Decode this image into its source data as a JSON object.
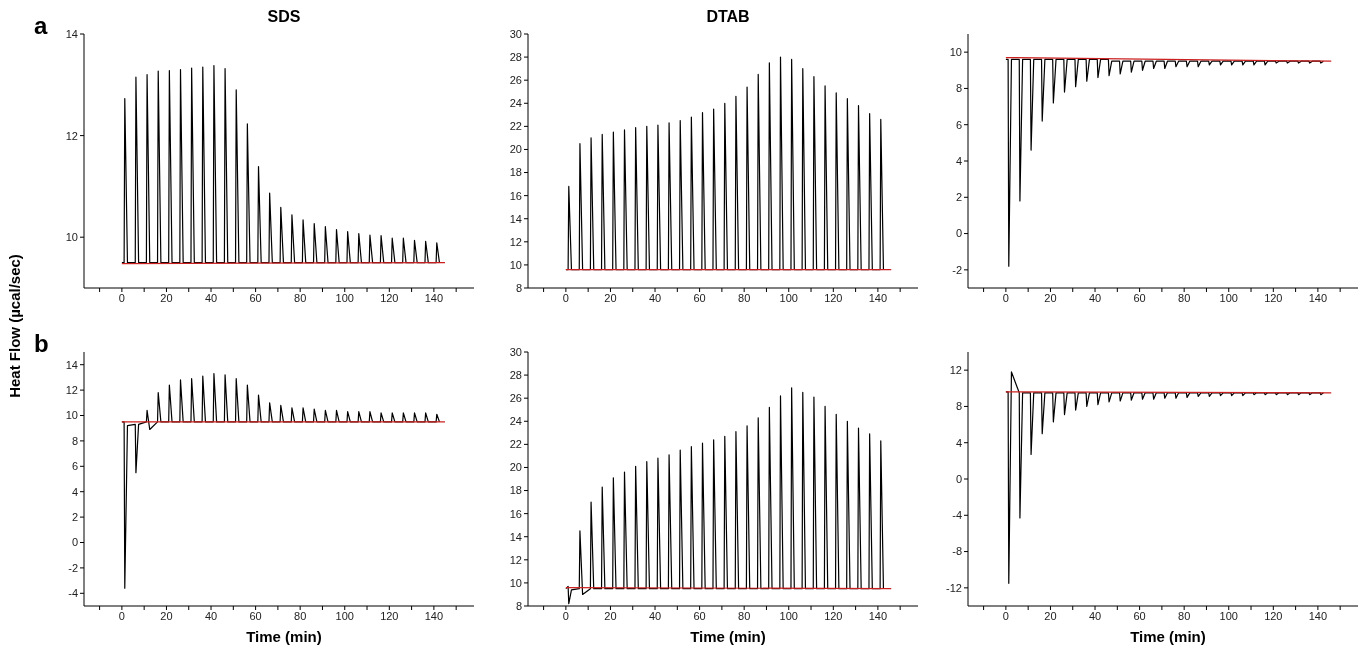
{
  "chart_data": [
    {
      "type": "line",
      "title": "SDS",
      "ylabel": "Heat Flow (µcal/sec)",
      "annotations": [
        "a"
      ],
      "xlim": [
        -17,
        158
      ],
      "xticks": [
        {
          "value": -10,
          "label": null
        },
        0,
        {
          "value": 10,
          "label": null
        },
        20,
        {
          "value": 30,
          "label": null
        },
        40,
        {
          "value": 50,
          "label": null
        },
        60,
        {
          "value": 70,
          "label": null
        },
        80,
        {
          "value": 90,
          "label": null
        },
        100,
        {
          "value": 110,
          "label": null
        },
        120,
        {
          "value": 130,
          "label": null
        },
        140,
        {
          "value": 150,
          "label": null
        }
      ],
      "ylim": [
        9,
        14
      ],
      "yticks": [
        10,
        12,
        14
      ],
      "x": [
        0,
        1,
        1.3,
        2.5,
        6,
        6.3,
        7.5,
        11,
        11.3,
        12.5,
        16,
        16.3,
        17.5,
        21,
        21.3,
        22.5,
        26,
        26.3,
        27.5,
        31,
        31.3,
        32.5,
        36,
        36.3,
        37.5,
        41,
        41.3,
        42.5,
        46,
        46.3,
        47.5,
        51,
        51.3,
        52.5,
        56,
        56.3,
        57.5,
        61,
        61.3,
        62.5,
        66,
        66.3,
        67.5,
        71,
        71.3,
        72.5,
        76,
        76.3,
        77.5,
        81,
        81.3,
        82.5,
        86,
        86.3,
        87.5,
        91,
        91.3,
        92.5,
        96,
        96.3,
        97.5,
        101,
        101.3,
        102.5,
        106,
        106.3,
        107.5,
        111,
        111.3,
        112.5,
        116,
        116.3,
        117.5,
        121,
        121.3,
        122.5,
        126,
        126.3,
        127.5,
        131,
        131.3,
        132.5,
        136,
        136.3,
        137.5,
        141,
        141.3,
        142.5
      ],
      "series": [
        {
          "color": "#000000",
          "values": [
            9.5,
            9.5,
            12.73,
            9.5,
            9.5,
            13.15,
            9.5,
            9.5,
            13.2,
            9.5,
            9.5,
            13.27,
            9.5,
            9.5,
            13.28,
            9.5,
            9.5,
            13.3,
            9.5,
            9.5,
            13.33,
            9.5,
            9.5,
            13.35,
            9.5,
            9.5,
            13.38,
            9.5,
            9.5,
            13.32,
            9.5,
            9.5,
            12.9,
            9.5,
            9.5,
            12.23,
            9.5,
            9.5,
            11.39,
            9.5,
            9.5,
            10.87,
            9.5,
            9.5,
            10.59,
            9.5,
            9.5,
            10.44,
            9.5,
            9.5,
            10.34,
            9.5,
            9.5,
            10.27,
            9.5,
            9.5,
            10.21,
            9.5,
            9.5,
            10.15,
            9.5,
            9.5,
            10.11,
            9.5,
            9.5,
            10.07,
            9.5,
            9.5,
            10.04,
            9.5,
            9.5,
            10.03,
            9.5,
            9.5,
            9.98,
            9.5,
            9.5,
            9.98,
            9.5,
            9.5,
            9.94,
            9.5,
            9.5,
            9.92,
            9.5,
            9.5,
            9.89,
            9.5
          ]
        },
        {
          "color": "#cc1f1f",
          "x": [
            0,
            145
          ],
          "values": [
            9.48,
            9.5
          ]
        }
      ]
    },
    {
      "type": "line",
      "title": "DTAB",
      "xlim": [
        -17,
        158
      ],
      "xticks": [
        {
          "value": -10,
          "label": null
        },
        0,
        {
          "value": 10,
          "label": null
        },
        20,
        {
          "value": 30,
          "label": null
        },
        40,
        {
          "value": 50,
          "label": null
        },
        60,
        {
          "value": 70,
          "label": null
        },
        80,
        {
          "value": 90,
          "label": null
        },
        100,
        {
          "value": 110,
          "label": null
        },
        120,
        {
          "value": 130,
          "label": null
        },
        140,
        {
          "value": 150,
          "label": null
        }
      ],
      "ylim": [
        8,
        30
      ],
      "yticks": [
        8,
        10,
        12,
        14,
        16,
        18,
        20,
        22,
        24,
        26,
        28,
        30
      ],
      "x": [
        0,
        1,
        1.3,
        2.5,
        6,
        6.3,
        7.5,
        11,
        11.3,
        12.5,
        16,
        16.3,
        17.5,
        21,
        21.3,
        22.5,
        26,
        26.3,
        27.5,
        31,
        31.3,
        32.5,
        36,
        36.3,
        37.5,
        41,
        41.3,
        42.5,
        46,
        46.3,
        47.5,
        51,
        51.3,
        52.5,
        56,
        56.3,
        57.5,
        61,
        61.3,
        62.5,
        66,
        66.3,
        67.5,
        71,
        71.3,
        72.5,
        76,
        76.3,
        77.5,
        81,
        81.3,
        82.5,
        86,
        86.3,
        87.5,
        91,
        91.3,
        92.5,
        96,
        96.3,
        97.5,
        101,
        101.3,
        102.5,
        106,
        106.3,
        107.5,
        111,
        111.3,
        112.5,
        116,
        116.3,
        117.5,
        121,
        121.3,
        122.5,
        126,
        126.3,
        127.5,
        131,
        131.3,
        132.5,
        136,
        136.3,
        137.5,
        141,
        141.3,
        142.5
      ],
      "series": [
        {
          "color": "#000000",
          "values": [
            9.6,
            9.6,
            16.8,
            9.6,
            9.6,
            20.5,
            9.6,
            9.6,
            21.0,
            9.6,
            9.6,
            21.3,
            9.6,
            9.6,
            21.5,
            9.6,
            9.6,
            21.7,
            9.6,
            9.6,
            21.9,
            9.6,
            9.6,
            22.0,
            9.6,
            9.6,
            22.1,
            9.6,
            9.6,
            22.3,
            9.6,
            9.6,
            22.5,
            9.6,
            9.6,
            22.8,
            9.6,
            9.6,
            23.2,
            9.6,
            9.6,
            23.5,
            9.6,
            9.6,
            24.0,
            9.6,
            9.6,
            24.6,
            9.6,
            9.6,
            25.4,
            9.6,
            9.6,
            26.5,
            9.6,
            9.6,
            27.5,
            9.6,
            9.6,
            28.0,
            9.6,
            9.6,
            27.8,
            9.6,
            9.6,
            27.0,
            9.6,
            9.6,
            26.3,
            9.6,
            9.6,
            25.5,
            9.6,
            9.6,
            24.9,
            9.6,
            9.6,
            24.4,
            9.6,
            9.6,
            23.8,
            9.6,
            9.6,
            23.1,
            9.6,
            9.6,
            22.6,
            9.6
          ]
        },
        {
          "color": "#cc1f1f",
          "x": [
            0,
            146
          ],
          "values": [
            9.6,
            9.6
          ]
        }
      ]
    },
    {
      "type": "line",
      "xlim": [
        -17,
        158
      ],
      "xticks": [
        {
          "value": -10,
          "label": null
        },
        0,
        {
          "value": 10,
          "label": null
        },
        20,
        {
          "value": 30,
          "label": null
        },
        40,
        {
          "value": 50,
          "label": null
        },
        60,
        {
          "value": 70,
          "label": null
        },
        80,
        {
          "value": 90,
          "label": null
        },
        100,
        {
          "value": 110,
          "label": null
        },
        120,
        {
          "value": 130,
          "label": null
        },
        140,
        {
          "value": 150,
          "label": null
        }
      ],
      "ylim": [
        -3,
        11
      ],
      "yticks": [
        -2,
        0,
        2,
        4,
        6,
        8,
        10
      ],
      "x": [
        0,
        1,
        1.3,
        2.5,
        6,
        6.3,
        7.5,
        11,
        11.3,
        12.5,
        16,
        16.3,
        17.5,
        21,
        21.3,
        22.5,
        26,
        26.3,
        27.5,
        31,
        31.3,
        32.5,
        36,
        36.3,
        37.5,
        41,
        41.3,
        42.5,
        46,
        46.3,
        47.5,
        51,
        51.3,
        52.5,
        56,
        56.3,
        57.5,
        61,
        61.3,
        62.5,
        66,
        66.3,
        67.5,
        71,
        71.3,
        72.5,
        76,
        76.3,
        77.5,
        81,
        81.3,
        82.5,
        86,
        86.3,
        87.5,
        91,
        91.3,
        92.5,
        96,
        96.3,
        97.5,
        101,
        101.3,
        102.5,
        106,
        106.3,
        107.5,
        111,
        111.3,
        112.5,
        116,
        116.3,
        117.5,
        121,
        121.3,
        122.5,
        126,
        126.3,
        127.5,
        131,
        131.3,
        132.5,
        136,
        136.3,
        137.5,
        141,
        141.3,
        142.5
      ],
      "series": [
        {
          "color": "#000000",
          "values": [
            9.6,
            9.6,
            -1.8,
            9.6,
            9.6,
            1.8,
            9.6,
            9.6,
            4.6,
            9.6,
            9.6,
            6.2,
            9.6,
            9.6,
            7.2,
            9.6,
            9.6,
            7.8,
            9.6,
            9.6,
            8.1,
            9.6,
            9.6,
            8.4,
            9.6,
            9.6,
            8.6,
            9.6,
            9.6,
            8.7,
            9.5,
            9.5,
            8.8,
            9.5,
            9.5,
            8.9,
            9.5,
            9.5,
            9.0,
            9.5,
            9.5,
            9.1,
            9.5,
            9.5,
            9.1,
            9.5,
            9.5,
            9.2,
            9.5,
            9.5,
            9.2,
            9.5,
            9.5,
            9.2,
            9.5,
            9.5,
            9.3,
            9.5,
            9.5,
            9.3,
            9.5,
            9.5,
            9.3,
            9.5,
            9.5,
            9.3,
            9.5,
            9.5,
            9.3,
            9.5,
            9.5,
            9.3,
            9.5,
            9.5,
            9.4,
            9.5,
            9.5,
            9.4,
            9.5,
            9.5,
            9.4,
            9.5,
            9.5,
            9.4,
            9.5,
            9.5,
            9.4,
            9.5
          ]
        },
        {
          "color": "#cc1f1f",
          "x": [
            0,
            146
          ],
          "values": [
            9.7,
            9.5
          ]
        }
      ]
    },
    {
      "type": "line",
      "xlabel": "Time (min)",
      "annotations": [
        "b"
      ],
      "xlim": [
        -17,
        158
      ],
      "xticks": [
        {
          "value": -10,
          "label": null
        },
        0,
        {
          "value": 10,
          "label": null
        },
        20,
        {
          "value": 30,
          "label": null
        },
        40,
        {
          "value": 50,
          "label": null
        },
        60,
        {
          "value": 70,
          "label": null
        },
        80,
        {
          "value": 90,
          "label": null
        },
        100,
        {
          "value": 110,
          "label": null
        },
        120,
        {
          "value": 130,
          "label": null
        },
        140,
        {
          "value": 150,
          "label": null
        }
      ],
      "ylim": [
        -5,
        15
      ],
      "yticks": [
        -4,
        -2,
        0,
        2,
        4,
        6,
        8,
        10,
        12,
        14
      ],
      "x": [
        0,
        1,
        1.3,
        2.5,
        6,
        6.3,
        7.5,
        11,
        11.3,
        12.5,
        16,
        16.3,
        17.5,
        21,
        21.3,
        22.5,
        26,
        26.3,
        27.5,
        31,
        31.3,
        32.5,
        36,
        36.3,
        37.5,
        41,
        41.3,
        42.5,
        46,
        46.3,
        47.5,
        51,
        51.3,
        52.5,
        56,
        56.3,
        57.5,
        61,
        61.3,
        62.5,
        66,
        66.3,
        67.5,
        71,
        71.3,
        72.5,
        76,
        76.3,
        77.5,
        81,
        81.3,
        82.5,
        86,
        86.3,
        87.5,
        91,
        91.3,
        92.5,
        96,
        96.3,
        97.5,
        101,
        101.3,
        102.5,
        106,
        106.3,
        107.5,
        111,
        111.3,
        112.5,
        116,
        116.3,
        117.5,
        121,
        121.3,
        122.5,
        126,
        126.3,
        127.5,
        131,
        131.3,
        132.5,
        136,
        136.3,
        137.5,
        141,
        141.3,
        142.5
      ],
      "series": [
        {
          "color": "#000000",
          "values": [
            9.5,
            9.5,
            -3.6,
            9.2,
            9.3,
            5.5,
            9.3,
            9.5,
            10.4,
            8.9,
            9.5,
            11.8,
            9.5,
            9.5,
            12.4,
            9.5,
            9.5,
            12.8,
            9.5,
            9.5,
            12.9,
            9.5,
            9.5,
            13.1,
            9.5,
            9.5,
            13.3,
            9.5,
            9.5,
            13.2,
            9.5,
            9.5,
            12.9,
            9.5,
            9.5,
            12.4,
            9.5,
            9.5,
            11.6,
            9.5,
            9.5,
            11.0,
            9.5,
            9.5,
            10.8,
            9.5,
            9.5,
            10.6,
            9.5,
            9.5,
            10.6,
            9.5,
            9.5,
            10.5,
            9.5,
            9.5,
            10.4,
            9.5,
            9.5,
            10.4,
            9.5,
            9.5,
            10.3,
            9.5,
            9.5,
            10.3,
            9.5,
            9.5,
            10.3,
            9.5,
            9.5,
            10.2,
            9.5,
            9.5,
            10.2,
            9.5,
            9.5,
            10.2,
            9.5,
            9.5,
            10.2,
            9.5,
            9.5,
            10.2,
            9.5,
            9.5,
            10.1,
            9.5
          ]
        },
        {
          "color": "#cc1f1f",
          "x": [
            0,
            145
          ],
          "values": [
            9.5,
            9.5
          ]
        }
      ]
    },
    {
      "type": "line",
      "xlabel": "Time (min)",
      "xlim": [
        -17,
        158
      ],
      "xticks": [
        {
          "value": -10,
          "label": null
        },
        0,
        {
          "value": 10,
          "label": null
        },
        20,
        {
          "value": 30,
          "label": null
        },
        40,
        {
          "value": 50,
          "label": null
        },
        60,
        {
          "value": 70,
          "label": null
        },
        80,
        {
          "value": 90,
          "label": null
        },
        100,
        {
          "value": 110,
          "label": null
        },
        120,
        {
          "value": 130,
          "label": null
        },
        140,
        {
          "value": 150,
          "label": null
        }
      ],
      "ylim": [
        8,
        30
      ],
      "yticks": [
        8,
        10,
        12,
        14,
        16,
        18,
        20,
        22,
        24,
        26,
        28,
        30
      ],
      "x": [
        0,
        1,
        1.3,
        2.5,
        6,
        6.3,
        7.5,
        11,
        11.3,
        12.5,
        16,
        16.3,
        17.5,
        21,
        21.3,
        22.5,
        26,
        26.3,
        27.5,
        31,
        31.3,
        32.5,
        36,
        36.3,
        37.5,
        41,
        41.3,
        42.5,
        46,
        46.3,
        47.5,
        51,
        51.3,
        52.5,
        56,
        56.3,
        57.5,
        61,
        61.3,
        62.5,
        66,
        66.3,
        67.5,
        71,
        71.3,
        72.5,
        76,
        76.3,
        77.5,
        81,
        81.3,
        82.5,
        86,
        86.3,
        87.5,
        91,
        91.3,
        92.5,
        96,
        96.3,
        97.5,
        101,
        101.3,
        102.5,
        106,
        106.3,
        107.5,
        111,
        111.3,
        112.5,
        116,
        116.3,
        117.5,
        121,
        121.3,
        122.5,
        126,
        126.3,
        127.5,
        131,
        131.3,
        132.5,
        136,
        136.3,
        137.5,
        141,
        141.3,
        142.5
      ],
      "series": [
        {
          "color": "#000000",
          "values": [
            9.5,
            9.7,
            8.2,
            9.4,
            9.5,
            14.5,
            9.0,
            9.5,
            17.0,
            9.5,
            9.5,
            18.3,
            9.5,
            9.5,
            19.1,
            9.5,
            9.5,
            19.6,
            9.5,
            9.5,
            20.1,
            9.5,
            9.5,
            20.5,
            9.5,
            9.5,
            20.8,
            9.5,
            9.5,
            21.1,
            9.5,
            9.5,
            21.5,
            9.5,
            9.5,
            21.8,
            9.5,
            9.5,
            22.1,
            9.5,
            9.5,
            22.4,
            9.5,
            9.5,
            22.7,
            9.5,
            9.5,
            23.1,
            9.5,
            9.5,
            23.6,
            9.5,
            9.5,
            24.3,
            9.5,
            9.5,
            25.2,
            9.5,
            9.5,
            26.2,
            9.5,
            9.5,
            26.9,
            9.5,
            9.5,
            26.5,
            9.5,
            9.5,
            26.1,
            9.5,
            9.5,
            25.3,
            9.5,
            9.5,
            24.6,
            9.5,
            9.5,
            24.0,
            9.5,
            9.5,
            23.4,
            9.5,
            9.5,
            22.9,
            9.5,
            9.5,
            22.3,
            9.5
          ]
        },
        {
          "color": "#cc1f1f",
          "x": [
            0,
            146
          ],
          "values": [
            9.6,
            9.5
          ]
        }
      ]
    },
    {
      "type": "line",
      "xlabel": "Time (min)",
      "xlim": [
        -17,
        158
      ],
      "xticks": [
        {
          "value": -10,
          "label": null
        },
        0,
        {
          "value": 10,
          "label": null
        },
        20,
        {
          "value": 30,
          "label": null
        },
        40,
        {
          "value": 50,
          "label": null
        },
        60,
        {
          "value": 70,
          "label": null
        },
        80,
        {
          "value": 90,
          "label": null
        },
        100,
        {
          "value": 110,
          "label": null
        },
        120,
        {
          "value": 130,
          "label": null
        },
        140,
        {
          "value": 150,
          "label": null
        }
      ],
      "ylim": [
        -14,
        14
      ],
      "yticks": [
        -12,
        -8,
        -4,
        0,
        4,
        8,
        12
      ],
      "x": [
        0,
        1,
        1.3,
        2.5,
        6,
        6.3,
        7.5,
        11,
        11.3,
        12.5,
        16,
        16.3,
        17.5,
        21,
        21.3,
        22.5,
        26,
        26.3,
        27.5,
        31,
        31.3,
        32.5,
        36,
        36.3,
        37.5,
        41,
        41.3,
        42.5,
        46,
        46.3,
        47.5,
        51,
        51.3,
        52.5,
        56,
        56.3,
        57.5,
        61,
        61.3,
        62.5,
        66,
        66.3,
        67.5,
        71,
        71.3,
        72.5,
        76,
        76.3,
        77.5,
        81,
        81.3,
        82.5,
        86,
        86.3,
        87.5,
        91,
        91.3,
        92.5,
        96,
        96.3,
        97.5,
        101,
        101.3,
        102.5,
        106,
        106.3,
        107.5,
        111,
        111.3,
        112.5,
        116,
        116.3,
        117.5,
        121,
        121.3,
        122.5,
        126,
        126.3,
        127.5,
        131,
        131.3,
        132.5,
        136,
        136.3,
        137.5,
        141,
        141.3,
        142.5
      ],
      "series": [
        {
          "color": "#000000",
          "values": [
            9.6,
            9.6,
            -11.5,
            11.8,
            9.5,
            -4.3,
            9.5,
            9.5,
            2.7,
            9.5,
            9.5,
            5.0,
            9.5,
            9.5,
            6.3,
            9.5,
            9.5,
            7.1,
            9.5,
            9.5,
            7.6,
            9.5,
            9.5,
            8.0,
            9.5,
            9.5,
            8.2,
            9.5,
            9.5,
            8.5,
            9.5,
            9.5,
            8.6,
            9.5,
            9.5,
            8.7,
            9.5,
            9.5,
            8.8,
            9.5,
            9.5,
            8.8,
            9.5,
            9.5,
            8.9,
            9.5,
            9.5,
            8.9,
            9.5,
            9.5,
            9.0,
            9.5,
            9.5,
            9.1,
            9.5,
            9.5,
            9.1,
            9.5,
            9.5,
            9.2,
            9.5,
            9.5,
            9.2,
            9.5,
            9.5,
            9.2,
            9.5,
            9.5,
            9.3,
            9.5,
            9.5,
            9.3,
            9.5,
            9.5,
            9.3,
            9.5,
            9.5,
            9.3,
            9.5,
            9.5,
            9.3,
            9.5,
            9.5,
            9.3,
            9.5,
            9.5,
            9.3,
            9.5
          ]
        },
        {
          "color": "#cc1f1f",
          "x": [
            0,
            146
          ],
          "values": [
            9.6,
            9.5
          ]
        }
      ]
    }
  ]
}
